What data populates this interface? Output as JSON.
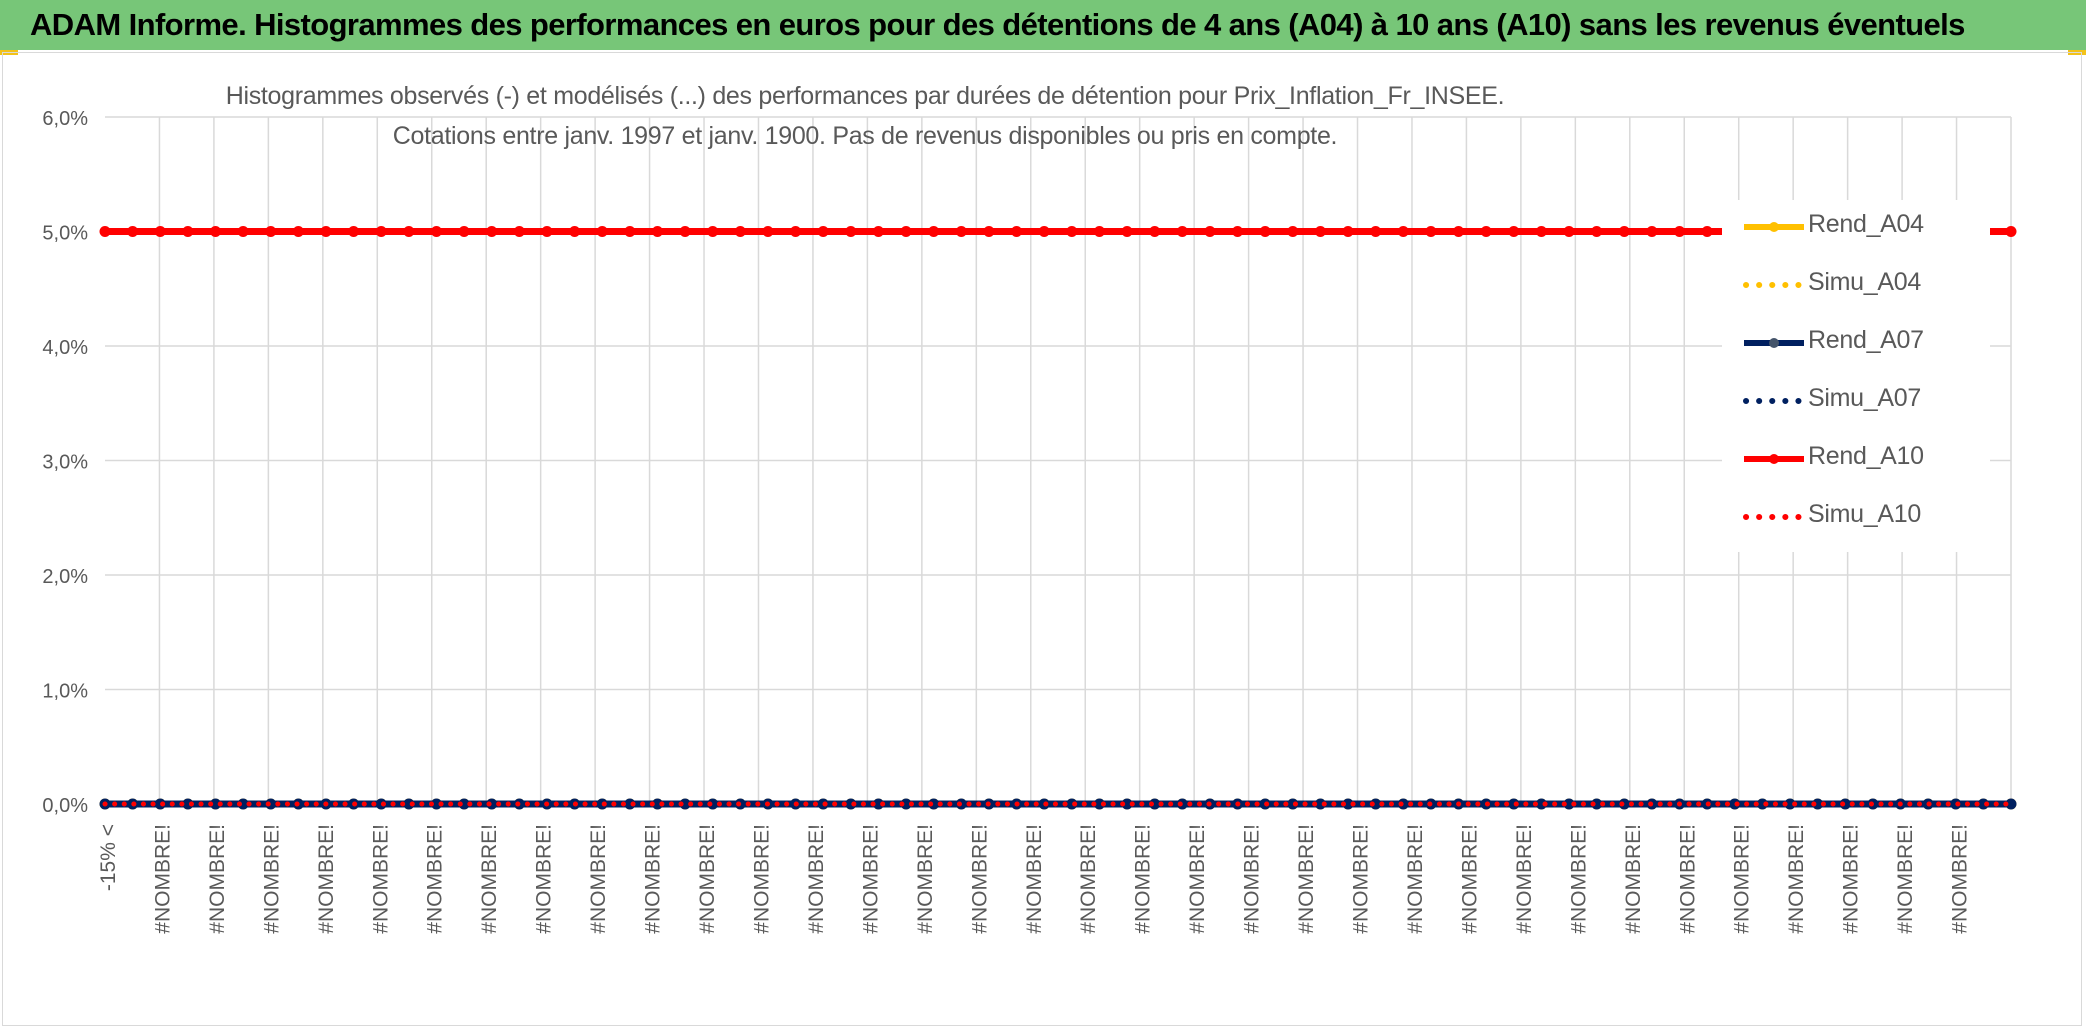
{
  "header": {
    "title": "ADAM Informe. Histogrammes des performances en euros pour des détentions de 4 ans (A04) à 10 ans (A10) sans les revenus éventuels",
    "background": "#77c678"
  },
  "chart_data": {
    "type": "line",
    "title_lines": [
      "Histogrammes observés (-) et modélisés (...) des performances par durées de détention pour Prix_Inflation_Fr_INSEE.",
      "Cotations entre janv. 1997 et janv. 1900. Pas de revenus disponibles ou pris en compte."
    ],
    "xlabel": "",
    "ylabel": "",
    "ylim": [
      0,
      6
    ],
    "y_unit": "%",
    "y_ticks": [
      "0,0%",
      "1,0%",
      "2,0%",
      "3,0%",
      "4,0%",
      "5,0%",
      "6,0%"
    ],
    "categories": [
      "-15% <",
      "#NOMBRE!",
      "#NOMBRE!",
      "#NOMBRE!",
      "#NOMBRE!",
      "#NOMBRE!",
      "#NOMBRE!",
      "#NOMBRE!",
      "#NOMBRE!",
      "#NOMBRE!",
      "#NOMBRE!",
      "#NOMBRE!",
      "#NOMBRE!",
      "#NOMBRE!",
      "#NOMBRE!",
      "#NOMBRE!",
      "#NOMBRE!",
      "#NOMBRE!",
      "#NOMBRE!",
      "#NOMBRE!",
      "#NOMBRE!",
      "#NOMBRE!",
      "#NOMBRE!",
      "#NOMBRE!",
      "#NOMBRE!",
      "#NOMBRE!",
      "#NOMBRE!",
      "#NOMBRE!",
      "#NOMBRE!",
      "#NOMBRE!",
      "#NOMBRE!",
      "#NOMBRE!",
      "#NOMBRE!",
      "#NOMBRE!",
      "#NOMBRE!"
    ],
    "points_per_category": 2,
    "grid": true,
    "legend_position": "right",
    "series": [
      {
        "name": "Rend_A04",
        "color": "#ffc000",
        "style": "solid",
        "marker": true,
        "constant_value": 0
      },
      {
        "name": "Simu_A04",
        "color": "#ffc000",
        "style": "dotted",
        "marker": false,
        "constant_value": 0
      },
      {
        "name": "Rend_A07",
        "color": "#002060",
        "style": "solid",
        "marker": true,
        "constant_value": 0
      },
      {
        "name": "Simu_A07",
        "color": "#002060",
        "style": "dotted",
        "marker": false,
        "constant_value": 0
      },
      {
        "name": "Rend_A10",
        "color": "#ff0000",
        "style": "solid",
        "marker": true,
        "constant_value": 5
      },
      {
        "name": "Simu_A10",
        "color": "#ff0000",
        "style": "dotted",
        "marker": false,
        "constant_value": 0
      }
    ]
  },
  "colors": {
    "grid": "#d9d9d9",
    "text": "#595959",
    "accent_corner": "#f2c21a"
  }
}
